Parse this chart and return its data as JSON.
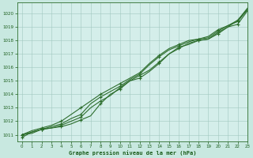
{
  "title": "Graphe pression niveau de la mer (hPa)",
  "bg_color": "#c8e8e0",
  "plot_bg_color": "#d4eeea",
  "grid_color": "#a0c8c0",
  "line_color": "#2d6e2d",
  "text_color": "#1a5c1a",
  "xlim": [
    -0.5,
    23
  ],
  "ylim": [
    1010.5,
    1020.8
  ],
  "xticks": [
    0,
    1,
    2,
    3,
    4,
    5,
    6,
    7,
    8,
    9,
    10,
    11,
    12,
    13,
    14,
    15,
    16,
    17,
    18,
    19,
    20,
    21,
    22,
    23
  ],
  "yticks": [
    1011,
    1012,
    1013,
    1014,
    1015,
    1016,
    1017,
    1018,
    1019,
    1020
  ],
  "series1": [
    1011.0,
    1011.1,
    1011.4,
    1011.5,
    1011.6,
    1011.8,
    1012.1,
    1012.4,
    1013.3,
    1014.0,
    1014.4,
    1015.0,
    1015.4,
    1015.8,
    1016.4,
    1017.0,
    1017.4,
    1017.8,
    1018.0,
    1018.1,
    1018.5,
    1019.0,
    1019.2,
    1020.2
  ],
  "series2": [
    1011.0,
    1011.2,
    1011.4,
    1011.6,
    1011.8,
    1012.2,
    1012.5,
    1013.3,
    1013.8,
    1014.2,
    1014.6,
    1015.1,
    1015.5,
    1016.2,
    1016.8,
    1017.3,
    1017.6,
    1017.9,
    1018.1,
    1018.2,
    1018.7,
    1019.1,
    1019.4,
    1020.3
  ],
  "series3": [
    1010.8,
    1011.2,
    1011.4,
    1011.5,
    1011.7,
    1012.0,
    1012.3,
    1013.0,
    1013.5,
    1013.9,
    1014.5,
    1015.0,
    1015.2,
    1015.7,
    1016.3,
    1017.0,
    1017.5,
    1017.7,
    1018.0,
    1018.1,
    1018.6,
    1019.0,
    1019.5,
    1020.3
  ],
  "series4": [
    1011.0,
    1011.3,
    1011.5,
    1011.7,
    1012.0,
    1012.5,
    1013.0,
    1013.5,
    1014.0,
    1014.4,
    1014.8,
    1015.2,
    1015.6,
    1016.3,
    1016.9,
    1017.4,
    1017.7,
    1018.0,
    1018.1,
    1018.3,
    1018.8,
    1019.1,
    1019.5,
    1020.4
  ],
  "marker_every": 2
}
